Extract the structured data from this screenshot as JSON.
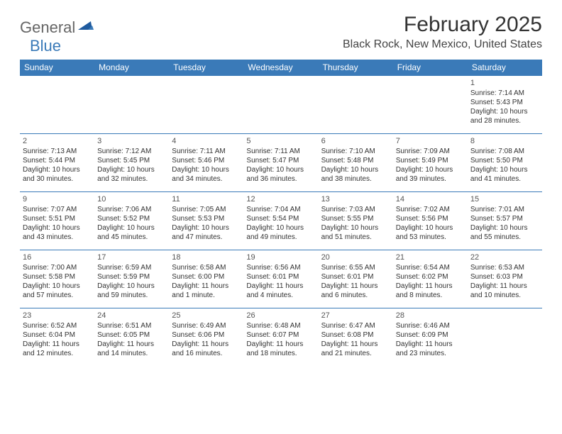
{
  "brand": {
    "text1": "General",
    "text2": "Blue"
  },
  "title": "February 2025",
  "location": "Black Rock, New Mexico, United States",
  "colors": {
    "accent": "#3a7ab8",
    "text": "#333333",
    "bg": "#ffffff"
  },
  "weekdays": [
    "Sunday",
    "Monday",
    "Tuesday",
    "Wednesday",
    "Thursday",
    "Friday",
    "Saturday"
  ],
  "weeks": [
    [
      null,
      null,
      null,
      null,
      null,
      null,
      {
        "d": "1",
        "sr": "Sunrise: 7:14 AM",
        "ss": "Sunset: 5:43 PM",
        "dl1": "Daylight: 10 hours",
        "dl2": "and 28 minutes."
      }
    ],
    [
      {
        "d": "2",
        "sr": "Sunrise: 7:13 AM",
        "ss": "Sunset: 5:44 PM",
        "dl1": "Daylight: 10 hours",
        "dl2": "and 30 minutes."
      },
      {
        "d": "3",
        "sr": "Sunrise: 7:12 AM",
        "ss": "Sunset: 5:45 PM",
        "dl1": "Daylight: 10 hours",
        "dl2": "and 32 minutes."
      },
      {
        "d": "4",
        "sr": "Sunrise: 7:11 AM",
        "ss": "Sunset: 5:46 PM",
        "dl1": "Daylight: 10 hours",
        "dl2": "and 34 minutes."
      },
      {
        "d": "5",
        "sr": "Sunrise: 7:11 AM",
        "ss": "Sunset: 5:47 PM",
        "dl1": "Daylight: 10 hours",
        "dl2": "and 36 minutes."
      },
      {
        "d": "6",
        "sr": "Sunrise: 7:10 AM",
        "ss": "Sunset: 5:48 PM",
        "dl1": "Daylight: 10 hours",
        "dl2": "and 38 minutes."
      },
      {
        "d": "7",
        "sr": "Sunrise: 7:09 AM",
        "ss": "Sunset: 5:49 PM",
        "dl1": "Daylight: 10 hours",
        "dl2": "and 39 minutes."
      },
      {
        "d": "8",
        "sr": "Sunrise: 7:08 AM",
        "ss": "Sunset: 5:50 PM",
        "dl1": "Daylight: 10 hours",
        "dl2": "and 41 minutes."
      }
    ],
    [
      {
        "d": "9",
        "sr": "Sunrise: 7:07 AM",
        "ss": "Sunset: 5:51 PM",
        "dl1": "Daylight: 10 hours",
        "dl2": "and 43 minutes."
      },
      {
        "d": "10",
        "sr": "Sunrise: 7:06 AM",
        "ss": "Sunset: 5:52 PM",
        "dl1": "Daylight: 10 hours",
        "dl2": "and 45 minutes."
      },
      {
        "d": "11",
        "sr": "Sunrise: 7:05 AM",
        "ss": "Sunset: 5:53 PM",
        "dl1": "Daylight: 10 hours",
        "dl2": "and 47 minutes."
      },
      {
        "d": "12",
        "sr": "Sunrise: 7:04 AM",
        "ss": "Sunset: 5:54 PM",
        "dl1": "Daylight: 10 hours",
        "dl2": "and 49 minutes."
      },
      {
        "d": "13",
        "sr": "Sunrise: 7:03 AM",
        "ss": "Sunset: 5:55 PM",
        "dl1": "Daylight: 10 hours",
        "dl2": "and 51 minutes."
      },
      {
        "d": "14",
        "sr": "Sunrise: 7:02 AM",
        "ss": "Sunset: 5:56 PM",
        "dl1": "Daylight: 10 hours",
        "dl2": "and 53 minutes."
      },
      {
        "d": "15",
        "sr": "Sunrise: 7:01 AM",
        "ss": "Sunset: 5:57 PM",
        "dl1": "Daylight: 10 hours",
        "dl2": "and 55 minutes."
      }
    ],
    [
      {
        "d": "16",
        "sr": "Sunrise: 7:00 AM",
        "ss": "Sunset: 5:58 PM",
        "dl1": "Daylight: 10 hours",
        "dl2": "and 57 minutes."
      },
      {
        "d": "17",
        "sr": "Sunrise: 6:59 AM",
        "ss": "Sunset: 5:59 PM",
        "dl1": "Daylight: 10 hours",
        "dl2": "and 59 minutes."
      },
      {
        "d": "18",
        "sr": "Sunrise: 6:58 AM",
        "ss": "Sunset: 6:00 PM",
        "dl1": "Daylight: 11 hours",
        "dl2": "and 1 minute."
      },
      {
        "d": "19",
        "sr": "Sunrise: 6:56 AM",
        "ss": "Sunset: 6:01 PM",
        "dl1": "Daylight: 11 hours",
        "dl2": "and 4 minutes."
      },
      {
        "d": "20",
        "sr": "Sunrise: 6:55 AM",
        "ss": "Sunset: 6:01 PM",
        "dl1": "Daylight: 11 hours",
        "dl2": "and 6 minutes."
      },
      {
        "d": "21",
        "sr": "Sunrise: 6:54 AM",
        "ss": "Sunset: 6:02 PM",
        "dl1": "Daylight: 11 hours",
        "dl2": "and 8 minutes."
      },
      {
        "d": "22",
        "sr": "Sunrise: 6:53 AM",
        "ss": "Sunset: 6:03 PM",
        "dl1": "Daylight: 11 hours",
        "dl2": "and 10 minutes."
      }
    ],
    [
      {
        "d": "23",
        "sr": "Sunrise: 6:52 AM",
        "ss": "Sunset: 6:04 PM",
        "dl1": "Daylight: 11 hours",
        "dl2": "and 12 minutes."
      },
      {
        "d": "24",
        "sr": "Sunrise: 6:51 AM",
        "ss": "Sunset: 6:05 PM",
        "dl1": "Daylight: 11 hours",
        "dl2": "and 14 minutes."
      },
      {
        "d": "25",
        "sr": "Sunrise: 6:49 AM",
        "ss": "Sunset: 6:06 PM",
        "dl1": "Daylight: 11 hours",
        "dl2": "and 16 minutes."
      },
      {
        "d": "26",
        "sr": "Sunrise: 6:48 AM",
        "ss": "Sunset: 6:07 PM",
        "dl1": "Daylight: 11 hours",
        "dl2": "and 18 minutes."
      },
      {
        "d": "27",
        "sr": "Sunrise: 6:47 AM",
        "ss": "Sunset: 6:08 PM",
        "dl1": "Daylight: 11 hours",
        "dl2": "and 21 minutes."
      },
      {
        "d": "28",
        "sr": "Sunrise: 6:46 AM",
        "ss": "Sunset: 6:09 PM",
        "dl1": "Daylight: 11 hours",
        "dl2": "and 23 minutes."
      },
      null
    ]
  ]
}
